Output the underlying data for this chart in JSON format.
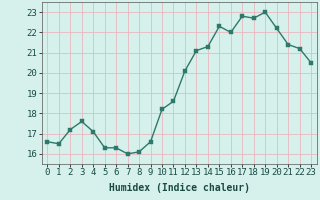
{
  "x": [
    0,
    1,
    2,
    3,
    4,
    5,
    6,
    7,
    8,
    9,
    10,
    11,
    12,
    13,
    14,
    15,
    16,
    17,
    18,
    19,
    20,
    21,
    22,
    23
  ],
  "y": [
    16.6,
    16.5,
    17.2,
    17.6,
    17.1,
    16.3,
    16.3,
    16.0,
    16.1,
    16.6,
    18.2,
    18.6,
    20.1,
    21.1,
    21.3,
    22.3,
    22.0,
    22.8,
    22.7,
    23.0,
    22.2,
    21.4,
    21.2,
    20.5
  ],
  "line_color": "#2d7a6a",
  "marker_color": "#2d7a6a",
  "bg_color": "#d6f0ec",
  "grid_color": "#e8b8c0",
  "xlabel": "Humidex (Indice chaleur)",
  "ylim": [
    15.5,
    23.5
  ],
  "xlim": [
    -0.5,
    23.5
  ],
  "yticks": [
    16,
    17,
    18,
    19,
    20,
    21,
    22,
    23
  ],
  "xticks": [
    0,
    1,
    2,
    3,
    4,
    5,
    6,
    7,
    8,
    9,
    10,
    11,
    12,
    13,
    14,
    15,
    16,
    17,
    18,
    19,
    20,
    21,
    22,
    23
  ],
  "xlabel_fontsize": 7,
  "tick_fontsize": 6.5,
  "line_width": 1.0,
  "marker_size": 2.5
}
